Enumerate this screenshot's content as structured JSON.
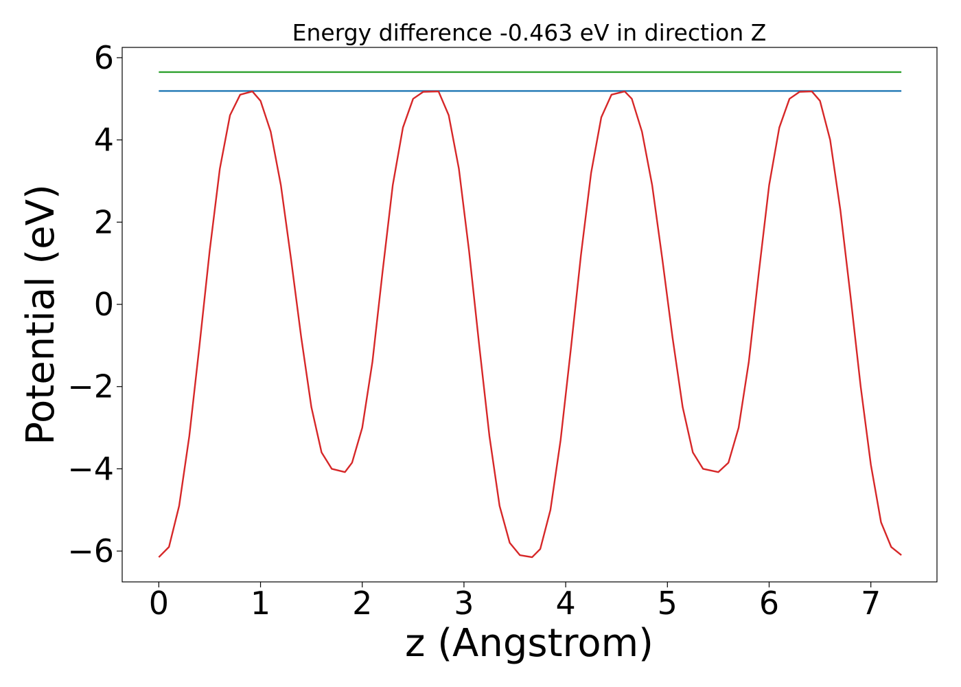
{
  "chart_data": {
    "type": "line",
    "title": "Energy difference -0.463 eV in direction Z",
    "xlabel": "z (Angstrom)",
    "ylabel": "Potential (eV)",
    "xlim": [
      -0.36,
      7.65
    ],
    "ylim": [
      -6.75,
      6.25
    ],
    "xticks": [
      0,
      1,
      2,
      3,
      4,
      5,
      6,
      7
    ],
    "yticks": [
      -6,
      -4,
      -2,
      0,
      2,
      4,
      6
    ],
    "xtick_labels": [
      "0",
      "1",
      "2",
      "3",
      "4",
      "5",
      "6",
      "7"
    ],
    "ytick_labels": [
      "−6",
      "−4",
      "−2",
      "0",
      "2",
      "4",
      "6"
    ],
    "grid": false,
    "series": [
      {
        "color": "#2ca02c",
        "x": [
          0.0,
          7.3
        ],
        "y": [
          5.65,
          5.65
        ]
      },
      {
        "color": "#1f77b4",
        "x": [
          0.0,
          7.3
        ],
        "y": [
          5.19,
          5.19
        ]
      },
      {
        "color": "#d62728",
        "x": [
          0.0,
          0.1,
          0.2,
          0.3,
          0.4,
          0.5,
          0.6,
          0.7,
          0.8,
          0.92,
          1.0,
          1.1,
          1.2,
          1.3,
          1.4,
          1.5,
          1.6,
          1.7,
          1.83,
          1.9,
          2.0,
          2.1,
          2.2,
          2.3,
          2.4,
          2.5,
          2.6,
          2.75,
          2.85,
          2.95,
          3.05,
          3.15,
          3.25,
          3.35,
          3.45,
          3.55,
          3.67,
          3.75,
          3.85,
          3.95,
          4.05,
          4.15,
          4.25,
          4.35,
          4.45,
          4.58,
          4.65,
          4.75,
          4.85,
          4.95,
          5.05,
          5.15,
          5.25,
          5.35,
          5.5,
          5.6,
          5.7,
          5.8,
          5.9,
          6.0,
          6.1,
          6.2,
          6.3,
          6.42,
          6.5,
          6.6,
          6.7,
          6.8,
          6.9,
          7.0,
          7.1,
          7.2,
          7.3
        ],
        "y": [
          -6.15,
          -5.9,
          -4.9,
          -3.2,
          -1.0,
          1.3,
          3.3,
          4.6,
          5.1,
          5.18,
          4.95,
          4.2,
          2.9,
          1.1,
          -0.8,
          -2.5,
          -3.6,
          -4.0,
          -4.08,
          -3.85,
          -3.0,
          -1.4,
          0.8,
          2.9,
          4.3,
          5.0,
          5.17,
          5.18,
          4.6,
          3.3,
          1.3,
          -1.0,
          -3.2,
          -4.9,
          -5.8,
          -6.1,
          -6.15,
          -5.95,
          -5.0,
          -3.3,
          -1.1,
          1.2,
          3.2,
          4.55,
          5.1,
          5.18,
          5.0,
          4.2,
          2.9,
          1.1,
          -0.8,
          -2.5,
          -3.6,
          -4.0,
          -4.08,
          -3.85,
          -3.0,
          -1.4,
          0.8,
          2.9,
          4.3,
          5.0,
          5.17,
          5.18,
          4.95,
          4.0,
          2.3,
          0.2,
          -2.0,
          -3.9,
          -5.3,
          -5.9,
          -6.1
        ]
      }
    ]
  }
}
